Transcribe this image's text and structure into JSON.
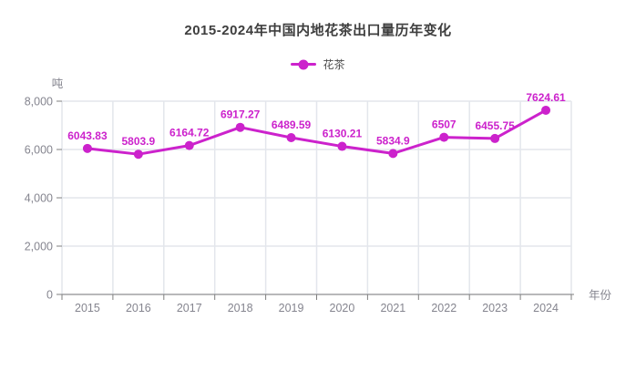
{
  "title": "2015-2024年中国内地花茶出口量历年变化",
  "legend": {
    "label": "花茶",
    "marker_color": "#cc22cc"
  },
  "chart_data": {
    "type": "line",
    "title": "2015-2024年中国内地花茶出口量历年变化",
    "categories": [
      "2015",
      "2016",
      "2017",
      "2018",
      "2019",
      "2020",
      "2021",
      "2022",
      "2023",
      "2024"
    ],
    "series": [
      {
        "name": "花茶",
        "color": "#cc22cc",
        "values": [
          6043.83,
          5803.9,
          6164.72,
          6917.27,
          6489.59,
          6130.21,
          5834.9,
          6507,
          6455.75,
          7624.61
        ],
        "data_labels": [
          "6043.83",
          "5803.9",
          "6164.72",
          "6917.27",
          "6489.59",
          "6130.21",
          "5834.9",
          "6507",
          "6455.75",
          "7624.61"
        ]
      }
    ],
    "xlabel": "年份",
    "ylabel_unit": "吨",
    "ylim": [
      0,
      8000
    ],
    "yticks": [
      0,
      2000,
      4000,
      6000,
      8000
    ],
    "ytick_labels": [
      "0",
      "2,000",
      "4,000",
      "6,000",
      "8,000"
    ],
    "grid": true,
    "legend_position": "top-center"
  },
  "colors": {
    "accent": "#cc22cc",
    "grid": "#e3e6ec",
    "axis": "#7f7f7f",
    "axis_text": "#85858f",
    "title_text": "#3e3e3e",
    "background": "#ffffff"
  }
}
